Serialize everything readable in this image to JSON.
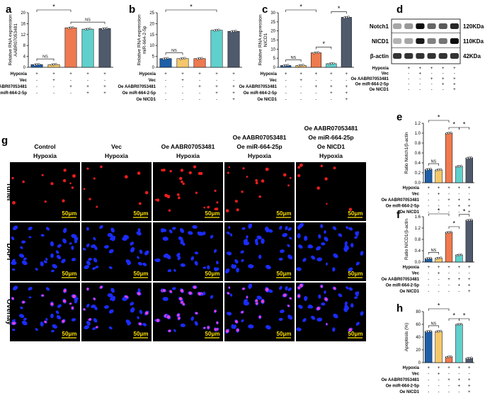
{
  "panel_letters": [
    "a",
    "b",
    "c",
    "d",
    "e",
    "f",
    "g",
    "h"
  ],
  "conditions": {
    "row_labels": [
      "Hypoxia",
      "Vec",
      "Oe AABR07053481",
      "Oe miR-664-2-5p",
      "Oe NICD1"
    ],
    "matrix": [
      [
        "-",
        "+",
        "+",
        "+",
        "+",
        "+"
      ],
      [
        "-",
        "-",
        "+",
        "-",
        "-",
        "-"
      ],
      [
        "-",
        "-",
        "-",
        "+",
        "+",
        "+"
      ],
      [
        "-",
        "-",
        "-",
        "-",
        "+",
        "+"
      ],
      [
        "-",
        "-",
        "-",
        "-",
        "-",
        "+"
      ]
    ]
  },
  "colors": {
    "s1": "#1f5fa8",
    "s2": "#f4c76a",
    "s3": "#ee7a4f",
    "s4": "#5fd0cc",
    "s5": "#4f5a6d",
    "fluor_bg": "#000000",
    "dapi": "#1a2cff",
    "tunel": "#ff2020",
    "scalebar": "#ffe000"
  },
  "chart_data": [
    {
      "panel": "a",
      "type": "bar",
      "ylabel": "Relative RNA expression AABR07053481",
      "ylim": [
        0,
        20
      ],
      "yticks": [
        "0",
        "4",
        "8",
        "12",
        "16",
        "20"
      ],
      "values": [
        1,
        1,
        14.5,
        14.0,
        14.2
      ],
      "annotations": [
        "NS",
        "*",
        "NS"
      ]
    },
    {
      "panel": "b",
      "type": "bar",
      "ylabel": "Relative RNA expression miR-664-2-5p",
      "ylim": [
        0,
        25
      ],
      "yticks": [
        "0",
        "5",
        "10",
        "15",
        "20",
        "25"
      ],
      "values": [
        4,
        4,
        4,
        17,
        16.5
      ],
      "annotations": [
        "NS",
        "*"
      ]
    },
    {
      "panel": "c",
      "type": "bar",
      "ylabel": "Relative RNA expression NICD1",
      "ylim": [
        0,
        30
      ],
      "yticks": [
        "0",
        "5",
        "10",
        "15",
        "20",
        "25",
        "30"
      ],
      "values": [
        1,
        1,
        8,
        2,
        27.5
      ],
      "annotations": [
        "NS",
        "*",
        "*",
        "*"
      ]
    },
    {
      "panel": "e",
      "type": "bar",
      "ylabel": "Ratio Notch1/β-actin",
      "ylim": [
        0,
        1.2
      ],
      "yticks": [
        "0.0",
        "0.2",
        "0.4",
        "0.6",
        "0.8",
        "1.0",
        "1.2"
      ],
      "values": [
        0.27,
        0.26,
        1.0,
        0.33,
        0.5
      ],
      "annotations": [
        "NS",
        "*",
        "*",
        "*"
      ]
    },
    {
      "panel": "f",
      "type": "bar",
      "ylabel": "Ratio NICD1/β-actin",
      "ylim": [
        0,
        1.6
      ],
      "yticks": [
        "0.0",
        "0.4",
        "0.8",
        "1.2",
        "1.6"
      ],
      "values": [
        0.13,
        0.14,
        1.05,
        0.25,
        1.48
      ],
      "annotations": [
        "NS",
        "*",
        "*",
        "*"
      ]
    },
    {
      "panel": "h",
      "type": "bar",
      "ylabel": "Apoptosis (%)",
      "ylim": [
        0,
        80
      ],
      "yticks": [
        "0",
        "20",
        "40",
        "60",
        "80"
      ],
      "values": [
        49,
        49,
        9,
        60,
        7
      ],
      "annotations": [
        "NS",
        "*",
        "*",
        "*"
      ]
    }
  ],
  "western": {
    "bands": [
      {
        "name": "Notch1",
        "size": "120KDa",
        "intensity": [
          0.35,
          0.4,
          0.95,
          0.6,
          0.65,
          0.85
        ]
      },
      {
        "name": "NICD1",
        "size": "110KDa",
        "intensity": [
          0.3,
          0.35,
          0.9,
          0.5,
          0.55,
          0.95
        ]
      },
      {
        "name": "β-actin",
        "size": "42KDa",
        "intensity": [
          0.8,
          0.8,
          0.8,
          0.8,
          0.8,
          0.8
        ]
      }
    ]
  },
  "microscopy": {
    "columns": [
      {
        "lines": [
          "Control",
          "Hypoxia"
        ]
      },
      {
        "lines": [
          "Vec",
          "Hypoxia"
        ]
      },
      {
        "lines": [
          "Oe AABR07053481",
          "Hypoxia"
        ]
      },
      {
        "lines": [
          "Oe AABR07053481",
          "Oe miR-664-25p",
          "Hypoxia"
        ]
      },
      {
        "lines": [
          "Oe AABR07053481",
          "Oe miR-664-25p",
          "Oe NICD1",
          "Hypoxia"
        ]
      }
    ],
    "rows": [
      "Tunel",
      "DAPI",
      "Overlay"
    ],
    "tunel_density": [
      12,
      10,
      26,
      16,
      9
    ],
    "scalebar": "50μm"
  }
}
